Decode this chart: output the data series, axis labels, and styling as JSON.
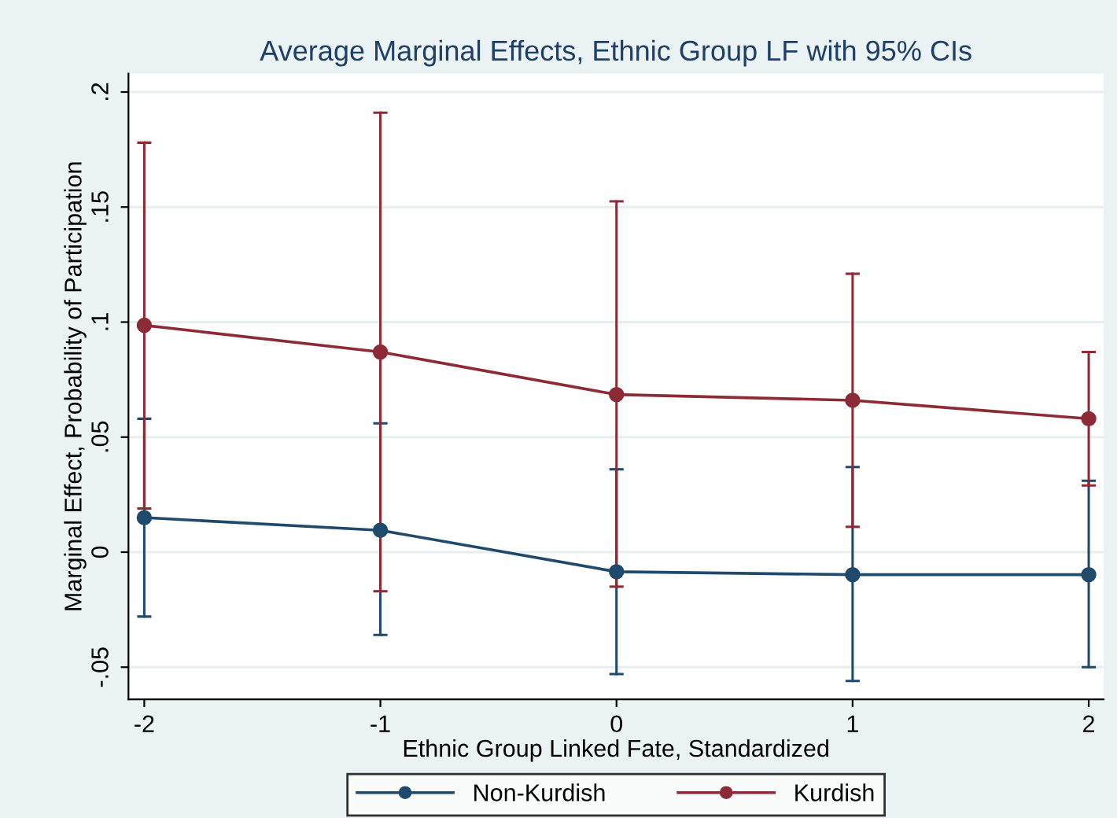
{
  "chart_data": {
    "type": "line",
    "title": "Average Marginal Effects, Ethnic Group LF with 95% CIs",
    "xlabel": "Ethnic Group Linked Fate, Standardized",
    "ylabel": "Marginal Effect, Probability of Participation",
    "x": [
      -2,
      -1,
      0,
      1,
      2
    ],
    "series": [
      {
        "name": "Non-Kurdish",
        "color": "#1f4a6b",
        "values": [
          0.015,
          0.0095,
          -0.0085,
          -0.0098,
          -0.0098
        ],
        "errors": [
          [
            -0.028,
            0.058
          ],
          [
            -0.036,
            0.056
          ],
          [
            -0.053,
            0.036
          ],
          [
            -0.056,
            0.037
          ],
          [
            -0.05,
            0.031
          ]
        ]
      },
      {
        "name": "Kurdish",
        "color": "#8c2a36",
        "values": [
          0.0986,
          0.087,
          0.0685,
          0.066,
          0.058
        ],
        "errors": [
          [
            0.019,
            0.178
          ],
          [
            -0.017,
            0.191
          ],
          [
            -0.015,
            0.1525
          ],
          [
            0.011,
            0.121
          ],
          [
            0.029,
            0.087
          ]
        ]
      }
    ],
    "xlim": [
      -2.067,
      2.063
    ],
    "ylim": [
      -0.064,
      0.208
    ],
    "xticks": [
      -2,
      -1,
      0,
      1,
      2
    ],
    "yticks": [
      {
        "value": -0.05,
        "label": "-.05"
      },
      0,
      {
        "value": 0.05,
        "label": ".05"
      },
      {
        "value": 0.1,
        "label": ".1"
      },
      {
        "value": 0.15,
        "label": ".15"
      },
      {
        "value": 0.2,
        "label": ".2"
      }
    ],
    "grid": "y",
    "legend": "bottom",
    "marker": "circle",
    "line_style": "solid"
  }
}
